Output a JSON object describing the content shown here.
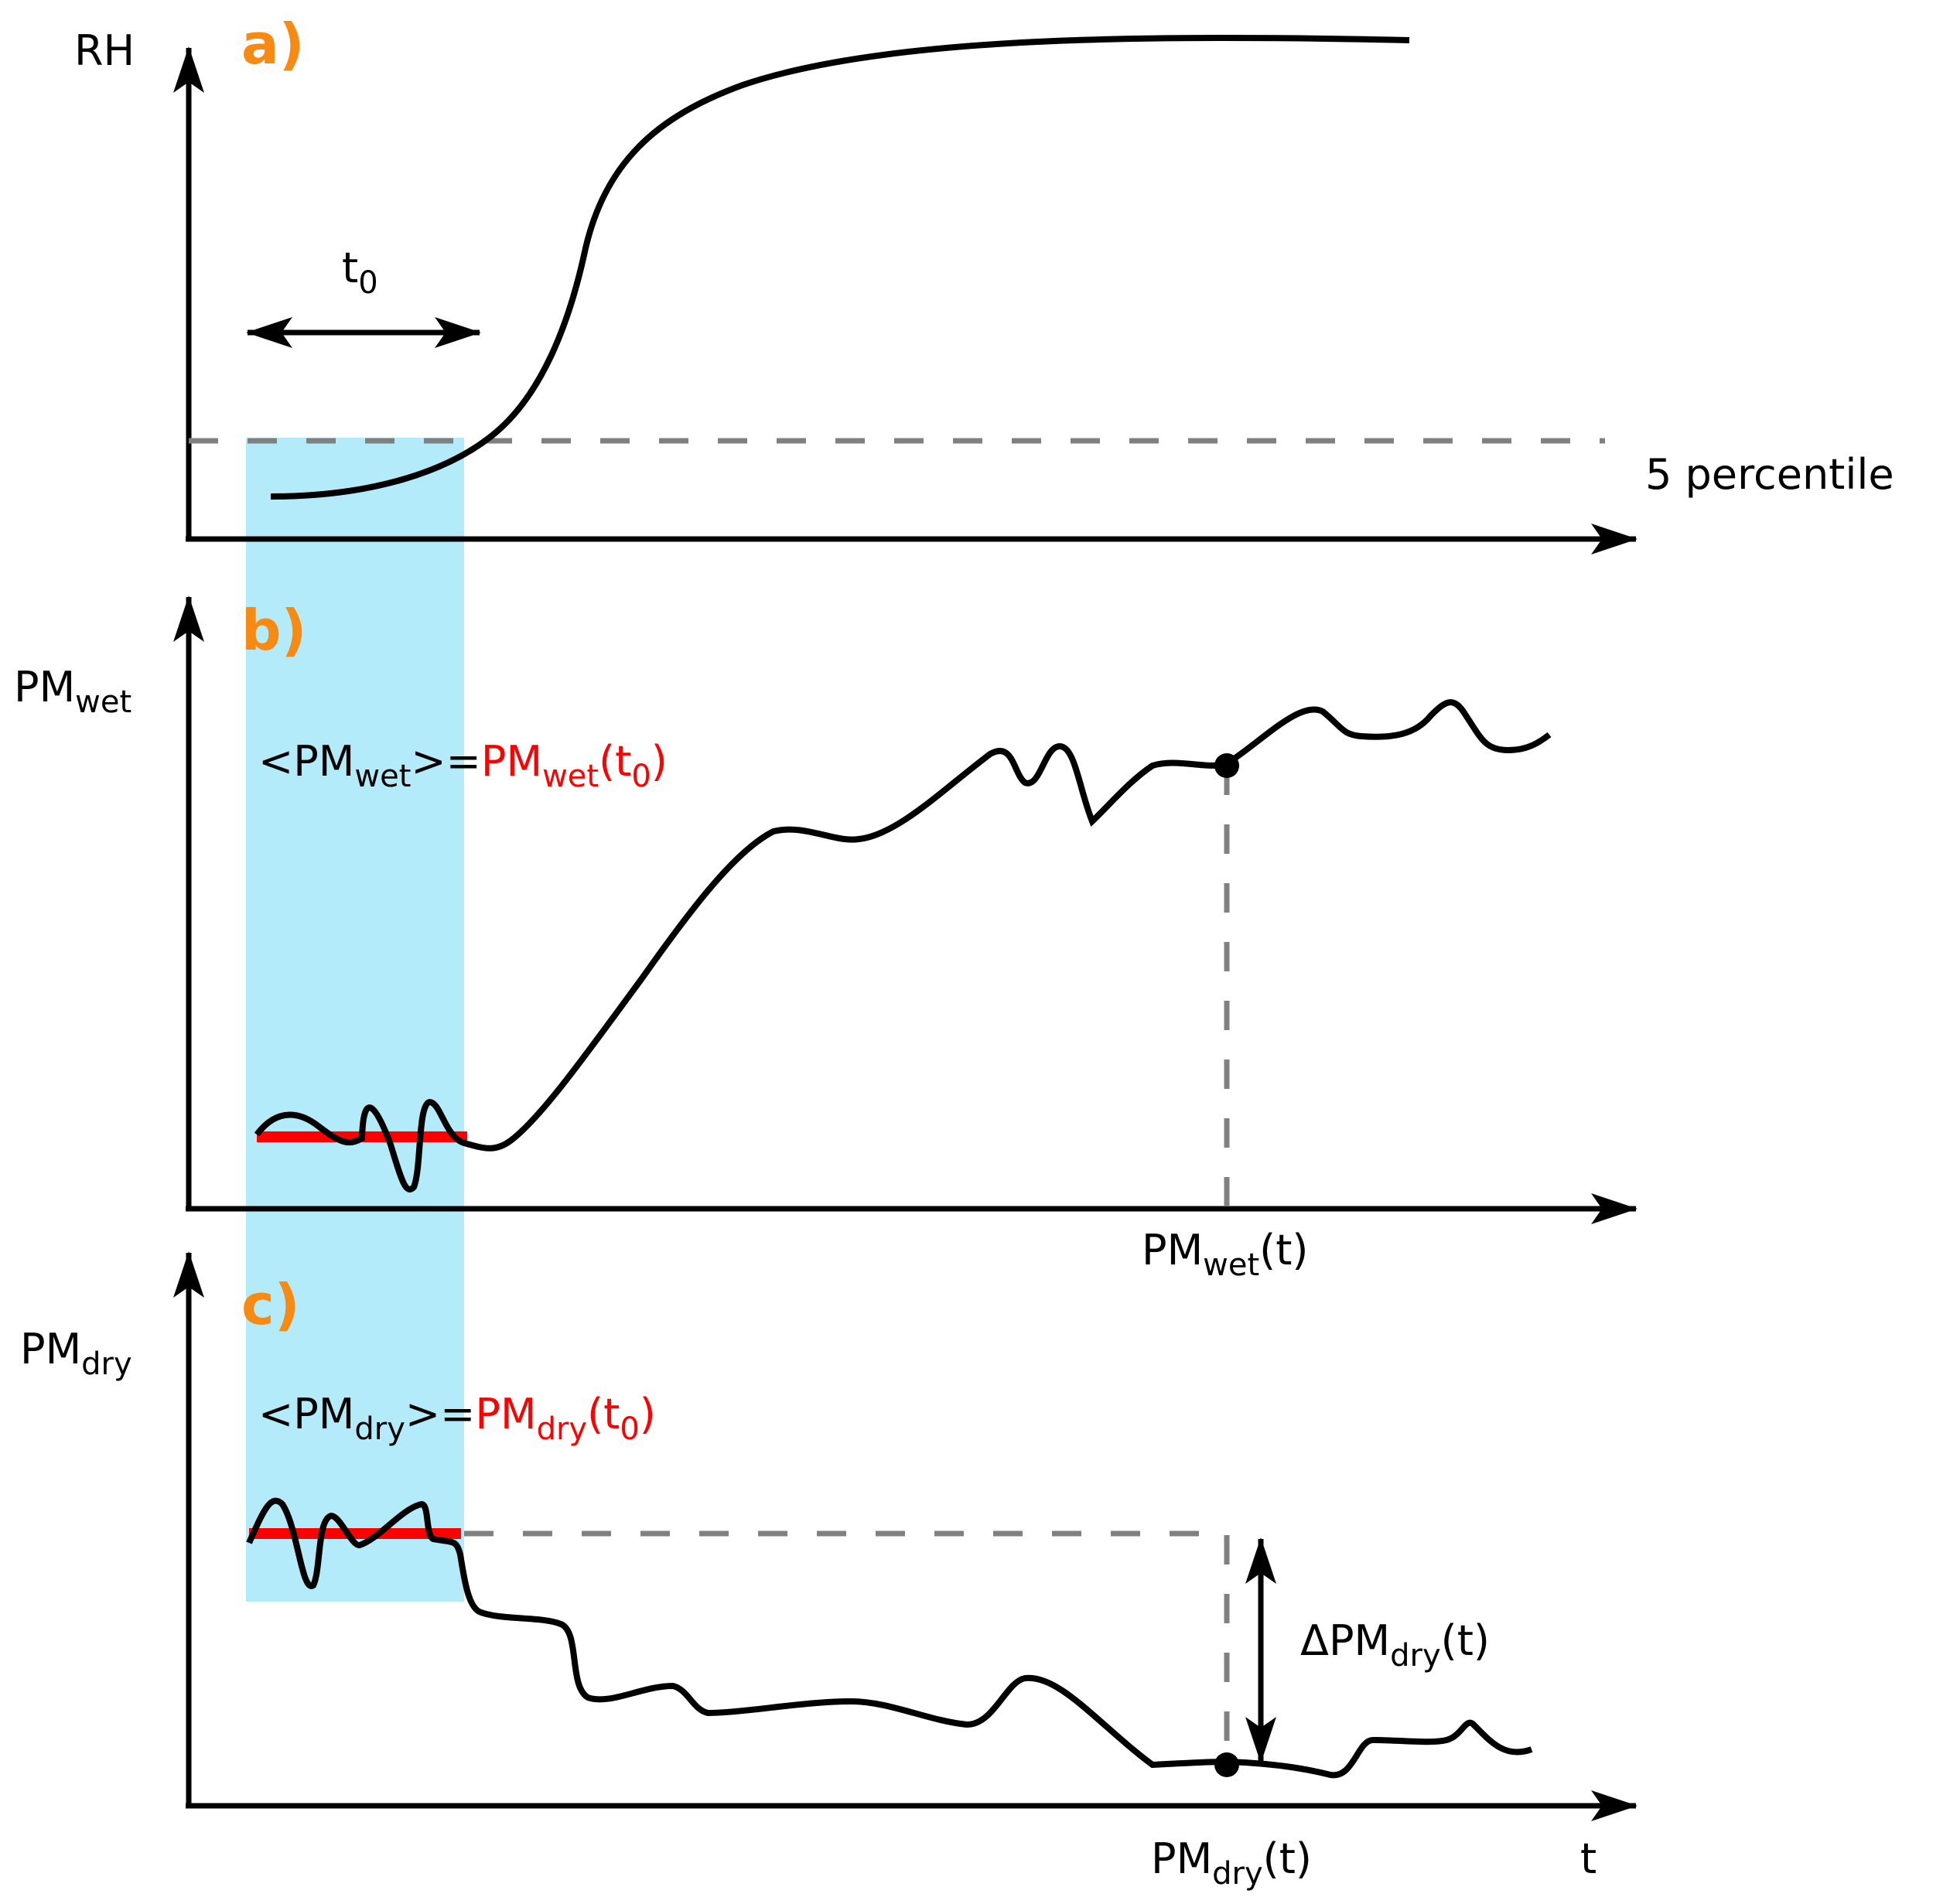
{
  "colors": {
    "panel_tag": "#f68a12",
    "highlight": "#b3ebfa",
    "dashed": "#808080",
    "baseline_mean": "#ff0000",
    "curve": "#000000"
  },
  "panel_a": {
    "tag": "a)",
    "y_label": "RH",
    "interval_label": "t",
    "interval_sub": "0",
    "threshold_label": "5 percentile"
  },
  "panel_b": {
    "tag": "b)",
    "y_label": "PM",
    "y_label_sub": "wet",
    "eq_lhs_open": "<PM",
    "eq_lhs_sub": "wet",
    "eq_lhs_close": ">=",
    "eq_rhs": "PM",
    "eq_rhs_sub": "wet",
    "eq_rhs_open": "(t",
    "eq_rhs_t_sub": "0",
    "eq_rhs_close": ")",
    "marker_label": "PM",
    "marker_label_sub": "wet",
    "marker_label_arg": "(t)"
  },
  "panel_c": {
    "tag": "c)",
    "y_label": "PM",
    "y_label_sub": "dry",
    "eq_lhs_open": "<PM",
    "eq_lhs_sub": "dry",
    "eq_lhs_close": ">=",
    "eq_rhs": "PM",
    "eq_rhs_sub": "dry",
    "eq_rhs_open": "(t",
    "eq_rhs_t_sub": "0",
    "eq_rhs_close": ")",
    "marker_label": "PM",
    "marker_label_sub": "dry",
    "marker_label_arg": "(t)",
    "delta_label": "ΔPM",
    "delta_label_sub": "dry",
    "delta_label_arg": "(t)",
    "x_label": "t"
  }
}
